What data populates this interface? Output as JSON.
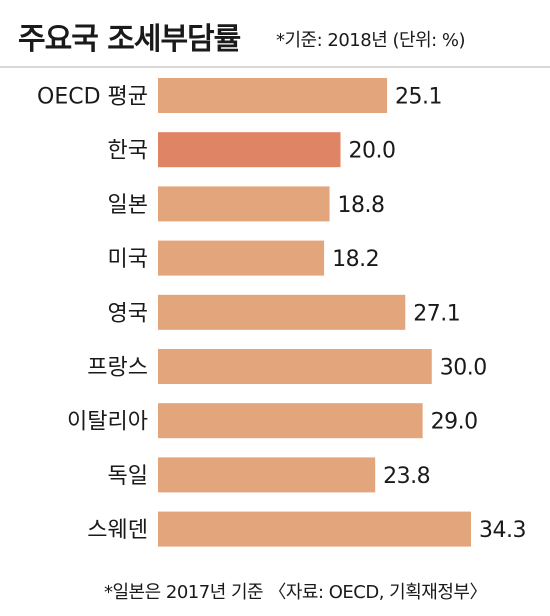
{
  "header": {
    "title": "주요국 조세부담률",
    "subtitle": "*기준: 2018년 (단위: %)"
  },
  "footer": {
    "note": "*일본은 2017년 기준 〈자료: OECD, 기획재정부〉"
  },
  "colors": {
    "bar": "#e3a57c",
    "highlight": "#e08466"
  },
  "chart_data": {
    "type": "bar",
    "orientation": "horizontal",
    "title": "주요국 조세부담률",
    "subtitle": "*기준: 2018년 (단위: %)",
    "unit": "%",
    "categories": [
      "OECD 평균",
      "한국",
      "일본",
      "미국",
      "영국",
      "프랑스",
      "이탈리아",
      "독일",
      "스웨덴"
    ],
    "values": [
      25.1,
      20.0,
      18.8,
      18.2,
      27.1,
      30.0,
      29.0,
      23.8,
      34.3
    ],
    "value_labels": [
      "25.1",
      "20.0",
      "18.8",
      "18.2",
      "27.1",
      "30.0",
      "29.0",
      "23.8",
      "34.3"
    ],
    "highlight_category": "한국",
    "xlim": [
      0,
      34.3
    ],
    "grid": false,
    "legend": "none"
  }
}
